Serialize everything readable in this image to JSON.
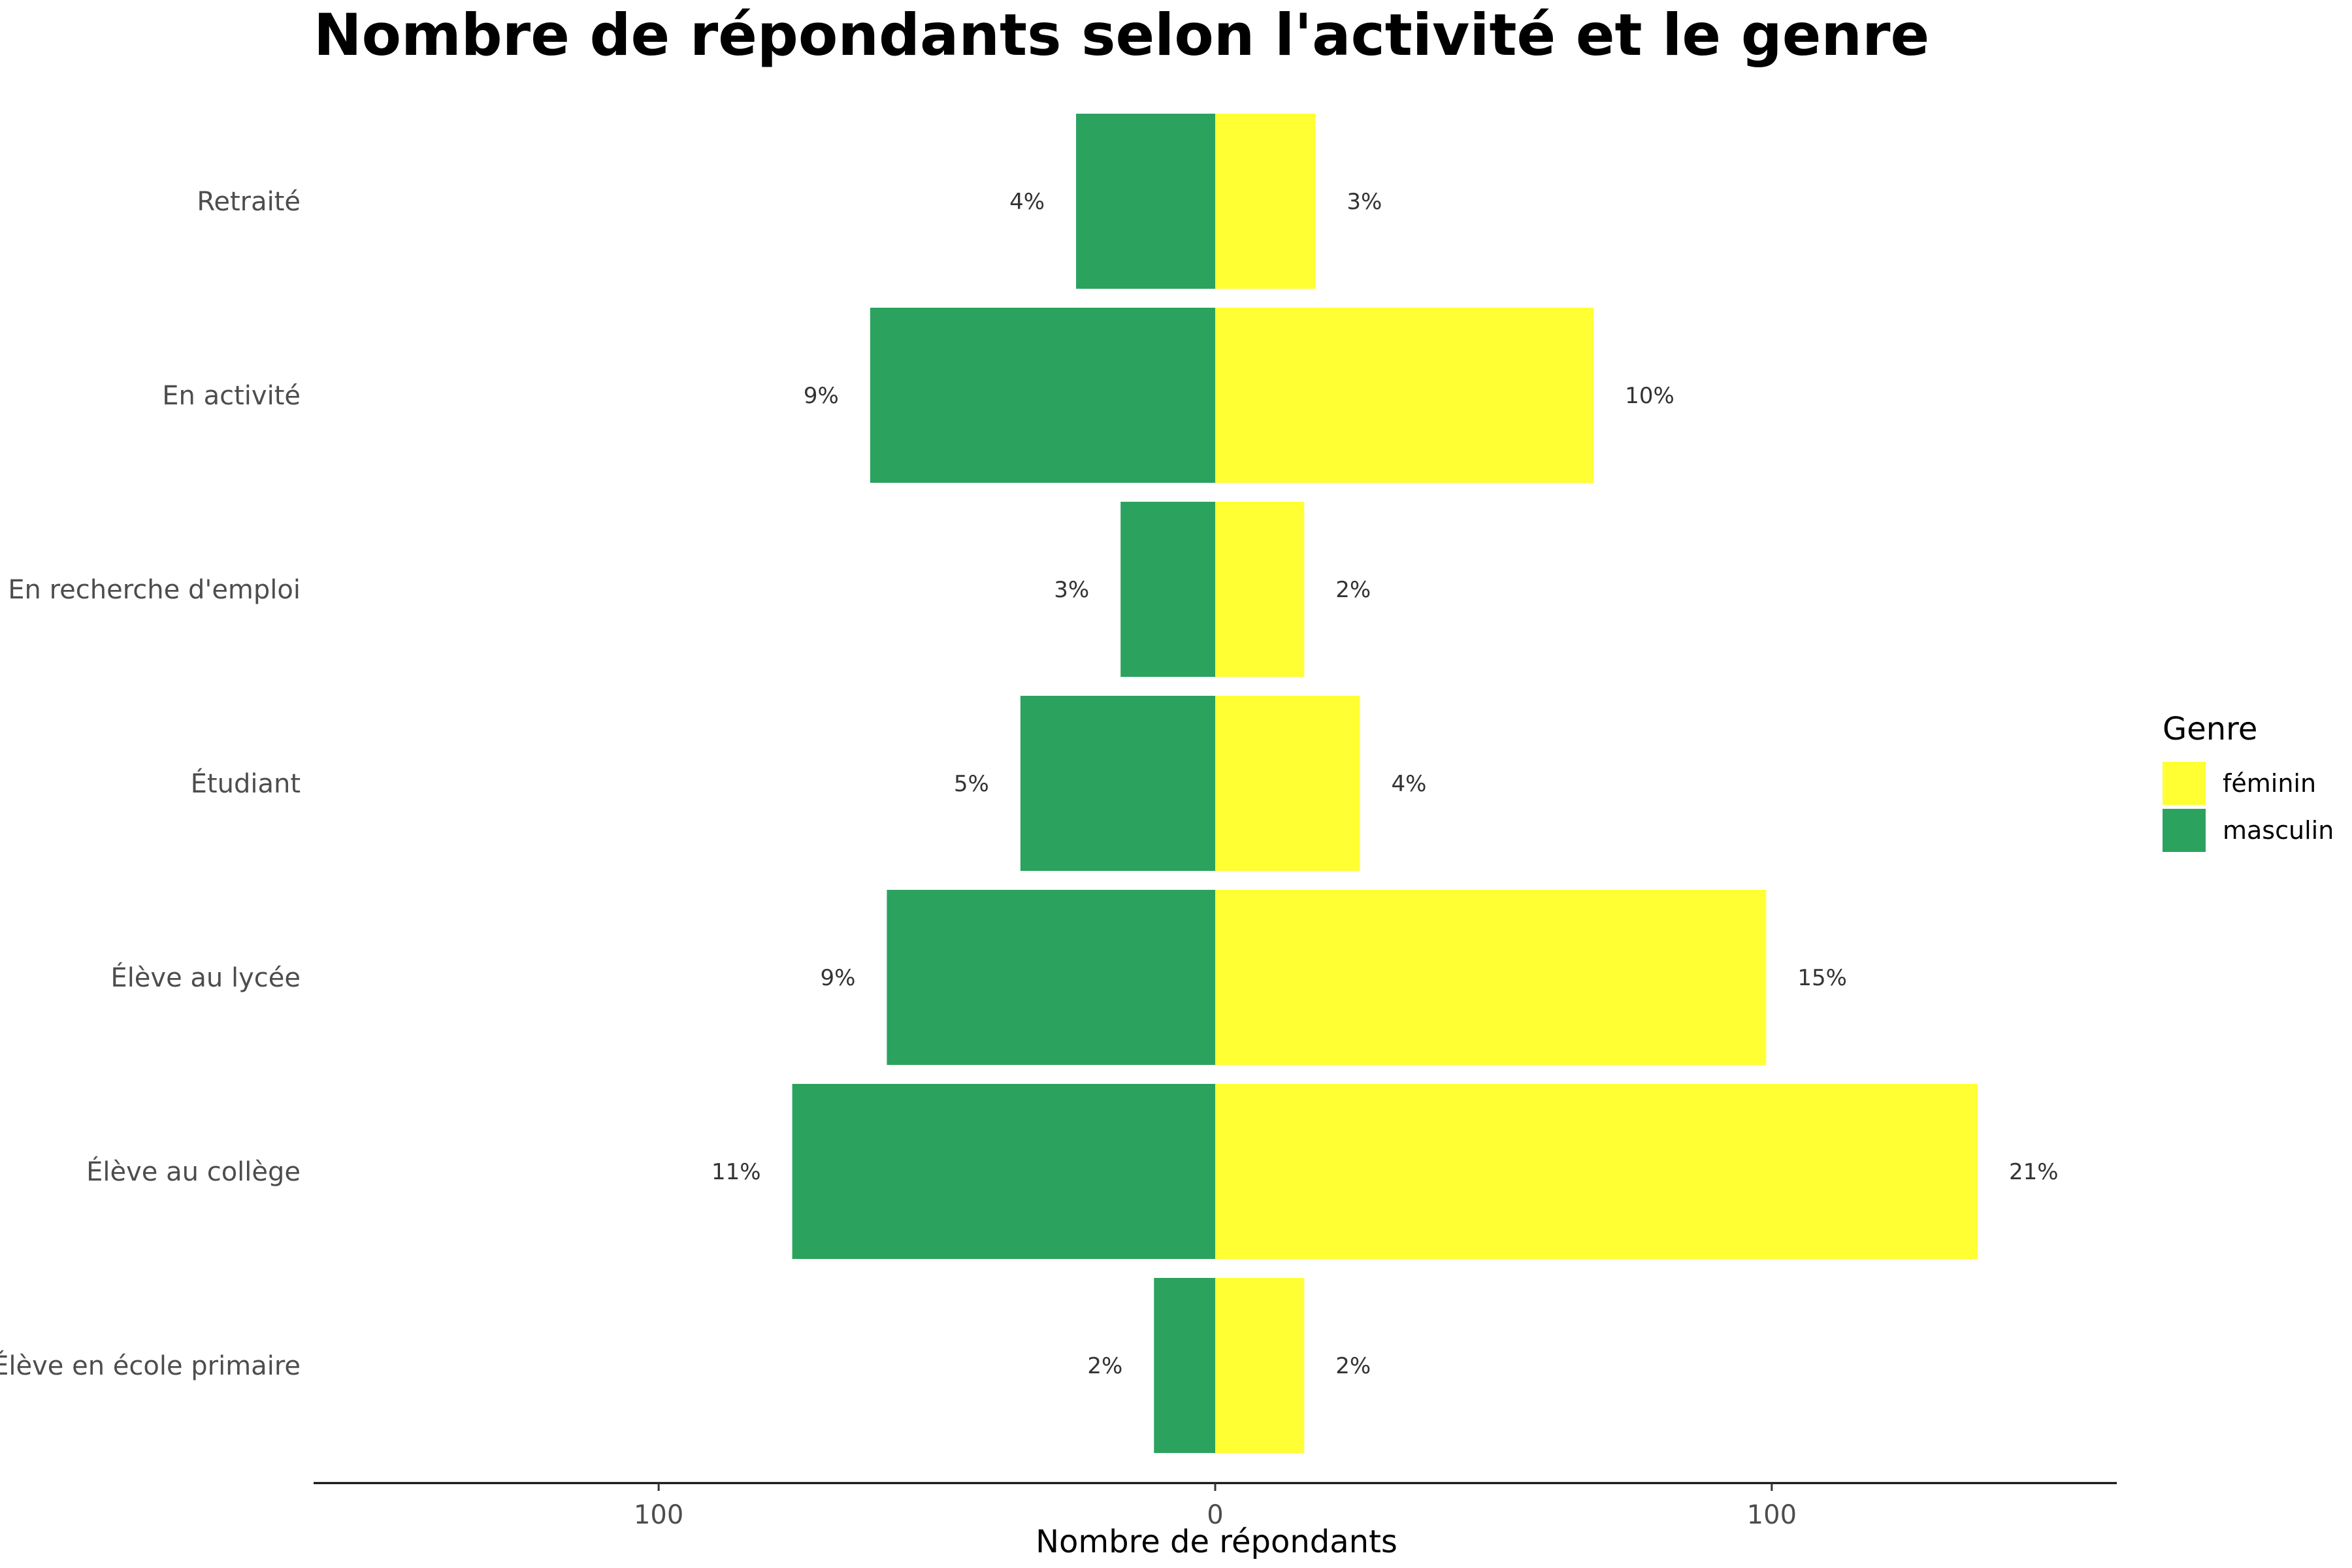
{
  "chart_data": {
    "type": "bar",
    "orientation": "horizontal-diverging",
    "title": "Nombre de répondants selon l'activité et le genre",
    "xlabel": "Nombre de répondants",
    "ylabel": "",
    "xlim": [
      -162,
      162
    ],
    "x_ticks": [
      -100,
      0,
      100
    ],
    "x_tick_labels": [
      "100",
      "0",
      "100"
    ],
    "grid": false,
    "categories": [
      "Retraité",
      "En activité",
      "En recherche d'emploi",
      "Étudiant",
      "Élève au lycée",
      "Élève au collège",
      "Élève en école primaire"
    ],
    "series": [
      {
        "name": "féminin",
        "color": "#FFFF33",
        "side": "right",
        "values": [
          18,
          68,
          16,
          26,
          99,
          137,
          16
        ],
        "labels": [
          "3%",
          "10%",
          "2%",
          "4%",
          "15%",
          "21%",
          "2%"
        ]
      },
      {
        "name": "masculin",
        "color": "#2CA25F",
        "side": "left",
        "values": [
          25,
          62,
          17,
          35,
          59,
          76,
          11
        ],
        "labels": [
          "4%",
          "9%",
          "3%",
          "5%",
          "9%",
          "11%",
          "2%"
        ]
      }
    ],
    "legend": {
      "title": "Genre",
      "position": "right",
      "entries": [
        "féminin",
        "masculin"
      ]
    }
  }
}
